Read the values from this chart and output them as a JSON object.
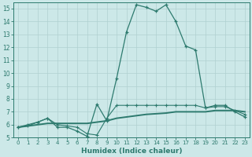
{
  "bg_color": "#cce8e8",
  "line_color": "#2d7a6e",
  "grid_color": "#b0d0d0",
  "xlabel": "Humidex (Indice chaleur)",
  "xlim": [
    -0.5,
    23.5
  ],
  "ylim": [
    5,
    15.5
  ],
  "yticks": [
    5,
    6,
    7,
    8,
    9,
    10,
    11,
    12,
    13,
    14,
    15
  ],
  "xticks": [
    0,
    1,
    2,
    3,
    4,
    5,
    6,
    7,
    8,
    9,
    10,
    11,
    12,
    13,
    14,
    15,
    16,
    17,
    18,
    19,
    20,
    21,
    22,
    23
  ],
  "series1_main": {
    "x": [
      0,
      1,
      2,
      3,
      4,
      5,
      6,
      7,
      8,
      9,
      10,
      11,
      12,
      13,
      14,
      15,
      16,
      17,
      18,
      19,
      20,
      21,
      22,
      23
    ],
    "y": [
      5.8,
      6.0,
      6.2,
      6.5,
      5.8,
      5.8,
      5.5,
      5.1,
      7.6,
      6.3,
      9.6,
      13.2,
      15.3,
      15.1,
      14.8,
      15.3,
      14.0,
      12.1,
      11.8,
      7.3,
      7.5,
      7.5,
      7.0,
      6.6
    ]
  },
  "series2_flat": {
    "x": [
      0,
      1,
      2,
      3,
      4,
      5,
      6,
      7,
      8,
      9,
      10,
      11,
      12,
      13,
      14,
      15,
      16,
      17,
      18,
      19,
      20,
      21,
      22,
      23
    ],
    "y": [
      5.8,
      5.9,
      6.0,
      6.1,
      6.1,
      6.1,
      6.1,
      6.1,
      6.2,
      6.3,
      6.5,
      6.6,
      6.7,
      6.8,
      6.85,
      6.9,
      7.0,
      7.0,
      7.0,
      7.0,
      7.1,
      7.1,
      7.1,
      7.0
    ]
  },
  "series3_mid": {
    "x": [
      0,
      1,
      2,
      3,
      4,
      5,
      6,
      7,
      8,
      9,
      10,
      11,
      12,
      13,
      14,
      15,
      16,
      17,
      18,
      19,
      20,
      21,
      22,
      23
    ],
    "y": [
      5.8,
      5.9,
      6.2,
      6.5,
      6.0,
      5.9,
      5.8,
      5.3,
      5.2,
      6.5,
      7.5,
      7.5,
      7.5,
      7.5,
      7.5,
      7.5,
      7.5,
      7.5,
      7.5,
      7.3,
      7.4,
      7.4,
      7.1,
      6.8
    ]
  }
}
